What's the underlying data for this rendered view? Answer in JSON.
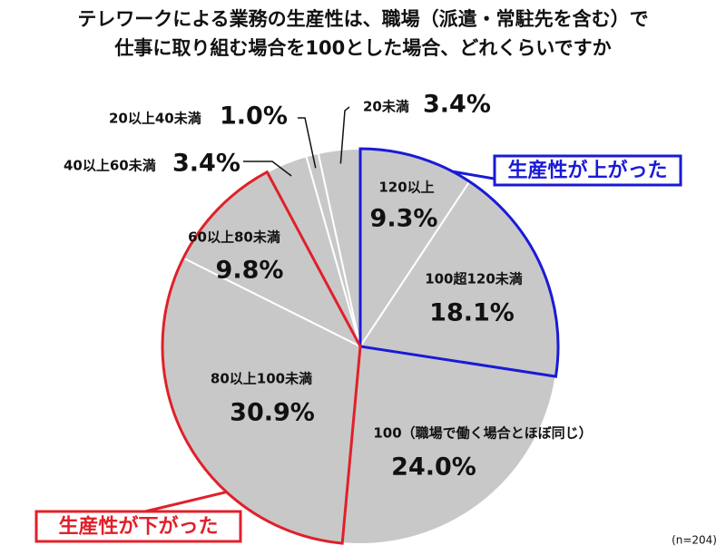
{
  "chart_data": {
    "type": "pie",
    "title": "テレワークによる業務の生産性は、職場（派遣・常駐先を含む）で",
    "subtitle": "仕事に取り組む場合を100とした場合、どれくらいですか",
    "categories": [
      "120以上",
      "100超120未満",
      "100（職場で働く場合とほぼ同じ）",
      "80以上100未満",
      "60以上80未満",
      "40以上60未満",
      "20以上40未満",
      "20未満"
    ],
    "values": [
      9.3,
      18.1,
      24.0,
      30.9,
      9.8,
      3.4,
      1.0,
      3.4
    ],
    "value_labels": [
      "9.3%",
      "18.1%",
      "24.0%",
      "30.9%",
      "9.8%",
      "3.4%",
      "1.0%",
      "3.4%"
    ],
    "color": "#c8c8c8",
    "groups": [
      {
        "label": "生産性が上がった",
        "color": "#1a1ad6",
        "categories": [
          "120以上",
          "100超120未満"
        ]
      },
      {
        "label": "生産性が下がった",
        "color": "#e0202a",
        "categories": [
          "80以上100未満",
          "60以上80未満"
        ]
      }
    ],
    "note": "(n=204)"
  }
}
